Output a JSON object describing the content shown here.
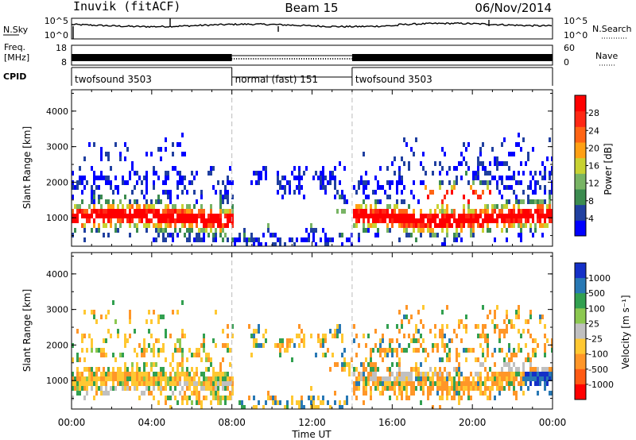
{
  "header": {
    "station": "Inuvik (fitACF)",
    "beam": "Beam 15",
    "date": "06/Nov/2014"
  },
  "strip_labels": {
    "nsky": "N.Sky",
    "nsearch": "N.Search",
    "freq": "Freq.",
    "freq_unit": "[MHz]",
    "nave": "Nave",
    "cpid": "CPID",
    "nsky_top": "10^5",
    "nsky_bottom": "10^0",
    "nsearch_top": "10^5",
    "nsearch_bottom": "10^0",
    "freq_top": "18",
    "freq_bottom": "8",
    "nave_top": "60",
    "nave_bottom": "0"
  },
  "cpid_segments": [
    {
      "label": "twofsound 3503",
      "start_h": 0,
      "end_h": 8
    },
    {
      "label": "normal (fast) 151",
      "start_h": 8,
      "end_h": 14
    },
    {
      "label": "twofsound 3503",
      "start_h": 14,
      "end_h": 24
    }
  ],
  "colors": {
    "power_scale": [
      "#0000ff",
      "#2040a0",
      "#3c8c50",
      "#78b464",
      "#c8d232",
      "#ffa014",
      "#ff6414",
      "#ff2814",
      "#ff0000"
    ],
    "velocity_scale": [
      "#1430c8",
      "#2878b4",
      "#32a050",
      "#8cc850",
      "#c0c0c0",
      "#ffc832",
      "#ff9628",
      "#ff5a14",
      "#ff0000"
    ]
  },
  "chart_data": [
    {
      "type": "heatmap",
      "title": "",
      "xlabel": "",
      "ylabel": "Slant Range [km]",
      "x_ticks": [
        "00:00",
        "04:00",
        "08:00",
        "12:00",
        "16:00",
        "20:00",
        "00:00"
      ],
      "xlim_hours": [
        0,
        24
      ],
      "ylim": [
        200,
        4600
      ],
      "y_ticks": [
        "1000",
        "2000",
        "3000",
        "4000"
      ],
      "colorbar_label": "Power [dB]",
      "colorbar_ticks": [
        "4",
        "8",
        "12",
        "16",
        "20",
        "24",
        "28"
      ],
      "colorbar_range": [
        0,
        32
      ]
    },
    {
      "type": "heatmap",
      "title": "",
      "xlabel": "Time UT",
      "ylabel": "Slant Range [km]",
      "x_ticks": [
        "00:00",
        "04:00",
        "08:00",
        "12:00",
        "16:00",
        "20:00",
        "00:00"
      ],
      "xlim_hours": [
        0,
        24
      ],
      "ylim": [
        200,
        4600
      ],
      "y_ticks": [
        "1000",
        "2000",
        "3000",
        "4000"
      ],
      "colorbar_label": "Velocity [m s⁻¹]",
      "colorbar_ticks": [
        "1000",
        "500",
        "100",
        "25",
        "-25",
        "-100",
        "-500",
        "-1000"
      ]
    }
  ]
}
